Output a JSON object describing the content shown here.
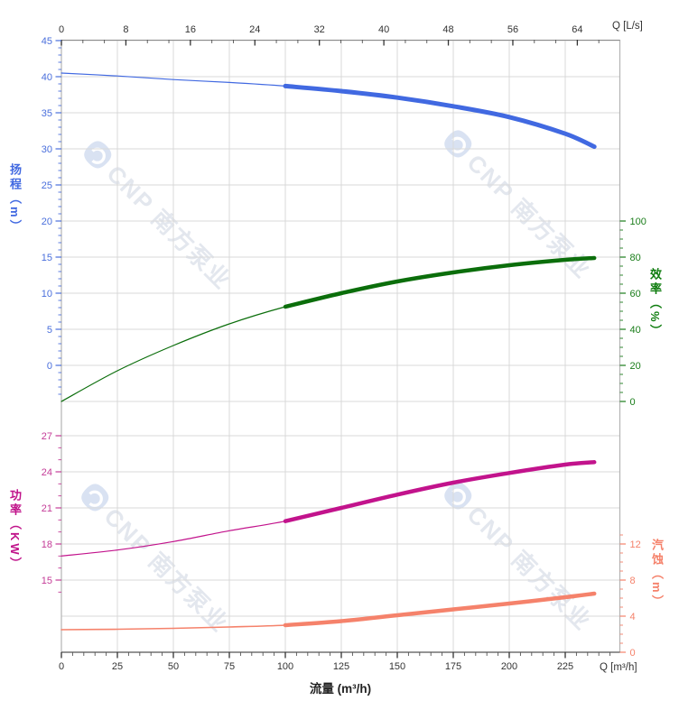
{
  "watermark": {
    "text": "CNP 南方泵业"
  },
  "chart_data": {
    "type": "line",
    "description": "Pump performance curves: head, efficiency, power and NPSH versus flow rate",
    "x_bottom": {
      "label": "流量 (m³/h)",
      "corner_label": "Q [m³/h]",
      "major_ticks": [
        0,
        25,
        50,
        75,
        100,
        125,
        150,
        175,
        200,
        225
      ],
      "minor_step": 5,
      "max": 249
    },
    "x_top": {
      "corner_label": "Q [L/s]",
      "major_ticks": [
        0,
        8,
        16,
        24,
        32,
        40,
        48,
        56,
        64
      ],
      "max": 69
    },
    "axes": {
      "head": {
        "label": "扬程（m）",
        "color": "#4169e1",
        "tick_color": "#4a6fdc",
        "side": "left",
        "ticks": [
          45,
          40,
          35,
          30,
          25,
          20,
          15,
          10,
          5,
          0
        ],
        "minor_step": 1
      },
      "eff": {
        "label": "效率（%）",
        "color": "#0e7c0e",
        "tick_color": "#1a7d1a",
        "side": "right",
        "ticks": [
          100,
          80,
          60,
          40,
          20,
          0
        ],
        "minor_step": 5
      },
      "power": {
        "label": "功率（KW）",
        "color": "#c0138a",
        "tick_color": "#c43b97",
        "side": "left",
        "ticks": [
          27,
          24,
          21,
          18,
          15
        ],
        "minor_step": 1
      },
      "npsh": {
        "label": "汽蚀（m）",
        "color": "#f5826b",
        "tick_color": "#f5826b",
        "side": "right",
        "ticks": [
          12,
          8,
          4,
          0
        ],
        "minor_step": 1
      }
    },
    "series": [
      {
        "name": "head",
        "axis": "head",
        "color": "#4169e1",
        "x": [
          0,
          25,
          50,
          75,
          100,
          125,
          150,
          175,
          200,
          225,
          238
        ],
        "y": [
          40.5,
          40.1,
          39.6,
          39.2,
          38.7,
          38.0,
          37.1,
          35.9,
          34.4,
          32.1,
          30.3
        ],
        "rated_from": 100
      },
      {
        "name": "efficiency",
        "axis": "eff",
        "color": "#0b6e0b",
        "x": [
          0,
          25,
          50,
          75,
          100,
          125,
          150,
          175,
          200,
          225,
          238
        ],
        "y": [
          0,
          17,
          31,
          43,
          52.5,
          60,
          66.5,
          71.5,
          75.5,
          78.5,
          79.5
        ],
        "rated_from": 100
      },
      {
        "name": "power",
        "axis": "power",
        "color": "#c2138c",
        "x": [
          0,
          25,
          50,
          75,
          100,
          125,
          150,
          175,
          200,
          225,
          238
        ],
        "y": [
          17.0,
          17.5,
          18.2,
          19.1,
          19.9,
          21.0,
          22.1,
          23.1,
          23.9,
          24.6,
          24.8
        ],
        "rated_from": 100
      },
      {
        "name": "npsh",
        "axis": "npsh",
        "color": "#f5826b",
        "x": [
          0,
          25,
          50,
          75,
          100,
          125,
          150,
          175,
          200,
          225,
          238
        ],
        "y": [
          2.5,
          2.55,
          2.65,
          2.8,
          3.0,
          3.45,
          4.1,
          4.75,
          5.4,
          6.1,
          6.5
        ],
        "rated_from": 100
      }
    ]
  }
}
